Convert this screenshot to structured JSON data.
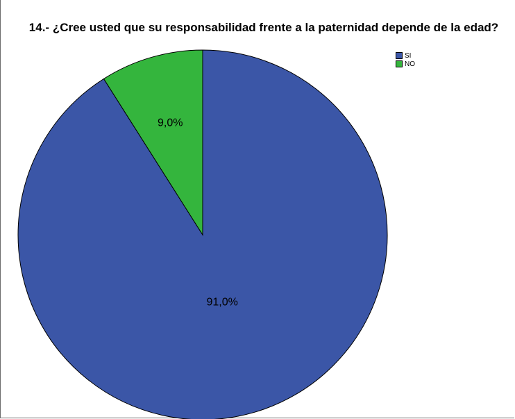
{
  "chart_data": {
    "type": "pie",
    "title": "14.- ¿Cree usted que su responsabilidad frente a la paternidad depende de la edad?",
    "slices": [
      {
        "label": "SI",
        "value": 91.0,
        "label_text": "91,0%",
        "color": "#3b56a7"
      },
      {
        "label": "NO",
        "value": 9.0,
        "label_text": "9,0%",
        "color": "#34b53d"
      }
    ],
    "legend": [
      "SI",
      "NO"
    ],
    "legend_position": "top-right"
  }
}
